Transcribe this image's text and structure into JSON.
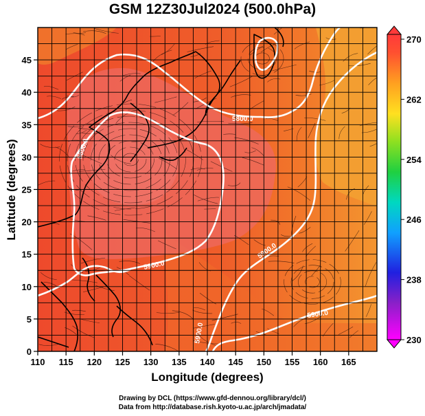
{
  "title": "GSM 12Z30Jul2024 (500.0hPa)",
  "credits": {
    "line1": "Drawing by DCL (https://www.gfd-dennou.org/library/dcl/)",
    "line2": "Data from http://database.rish.kyoto-u.ac.jp/arch/jmadata/"
  },
  "map": {
    "xlabel": "Longitude (degrees)",
    "ylabel": "Latitude  (degrees)",
    "xlim": [
      110,
      170
    ],
    "ylim": [
      0,
      50
    ],
    "xticks": [
      "110",
      "115",
      "120",
      "125",
      "130",
      "135",
      "140",
      "145",
      "150",
      "155",
      "160",
      "165"
    ],
    "yticks": [
      "0",
      "5",
      "10",
      "15",
      "20",
      "25",
      "30",
      "35",
      "40",
      "45"
    ],
    "contour_labels": [
      "5800.0",
      "5800.0",
      "5900.0",
      "5900.0",
      "5900.0",
      "5900.0"
    ],
    "colors": {
      "deep_red": "#e8402e",
      "red": "#f05a2a",
      "red_orange": "#f2702a",
      "orange": "#f4a030",
      "highlight": "#ee7068",
      "contour": "#ffffff",
      "coast": "#000000"
    }
  },
  "colorbar": {
    "ticks": [
      "270",
      "262",
      "254",
      "246",
      "238",
      "230"
    ],
    "range": [
      230,
      270
    ],
    "stops": [
      "#ff00ff",
      "#7020c0",
      "#2020ff",
      "#00c0ff",
      "#00e080",
      "#40d020",
      "#c0e020",
      "#ffd020",
      "#ff9020",
      "#ff4030",
      "#ff3030"
    ]
  }
}
